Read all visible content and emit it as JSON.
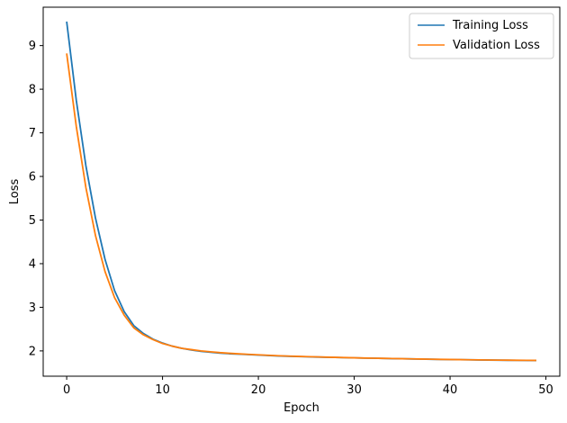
{
  "chart_data": {
    "type": "line",
    "title": "",
    "xlabel": "Epoch",
    "ylabel": "Loss",
    "xlim": [
      -2.45,
      51.45
    ],
    "ylim": [
      1.42,
      9.88
    ],
    "xticks": [
      0,
      10,
      20,
      30,
      40,
      50
    ],
    "yticks": [
      2,
      3,
      4,
      5,
      6,
      7,
      8,
      9
    ],
    "grid": false,
    "legend_position": "top-right",
    "x": [
      0,
      1,
      2,
      3,
      4,
      5,
      6,
      7,
      8,
      9,
      10,
      11,
      12,
      13,
      14,
      15,
      16,
      17,
      18,
      19,
      20,
      21,
      22,
      23,
      24,
      25,
      26,
      27,
      28,
      29,
      30,
      31,
      32,
      33,
      34,
      35,
      36,
      37,
      38,
      39,
      40,
      41,
      42,
      43,
      44,
      45,
      46,
      47,
      48,
      49
    ],
    "series": [
      {
        "name": "Training Loss",
        "color": "#1f77b4",
        "values": [
          9.55,
          7.75,
          6.25,
          5.05,
          4.1,
          3.38,
          2.9,
          2.58,
          2.4,
          2.27,
          2.18,
          2.11,
          2.06,
          2.02,
          1.99,
          1.97,
          1.95,
          1.935,
          1.925,
          1.915,
          1.905,
          1.895,
          1.885,
          1.878,
          1.872,
          1.866,
          1.86,
          1.855,
          1.85,
          1.845,
          1.84,
          1.836,
          1.832,
          1.828,
          1.824,
          1.82,
          1.816,
          1.812,
          1.808,
          1.805,
          1.802,
          1.799,
          1.796,
          1.793,
          1.79,
          1.787,
          1.785,
          1.783,
          1.781,
          1.78
        ]
      },
      {
        "name": "Validation Loss",
        "color": "#ff7f0e",
        "values": [
          8.82,
          7.15,
          5.75,
          4.65,
          3.82,
          3.22,
          2.82,
          2.53,
          2.37,
          2.26,
          2.17,
          2.11,
          2.06,
          2.03,
          2.0,
          1.98,
          1.96,
          1.945,
          1.932,
          1.92,
          1.91,
          1.9,
          1.89,
          1.882,
          1.875,
          1.869,
          1.863,
          1.857,
          1.852,
          1.847,
          1.842,
          1.837,
          1.833,
          1.829,
          1.825,
          1.821,
          1.817,
          1.813,
          1.81,
          1.806,
          1.803,
          1.8,
          1.797,
          1.794,
          1.791,
          1.789,
          1.787,
          1.785,
          1.783,
          1.782
        ]
      }
    ]
  }
}
